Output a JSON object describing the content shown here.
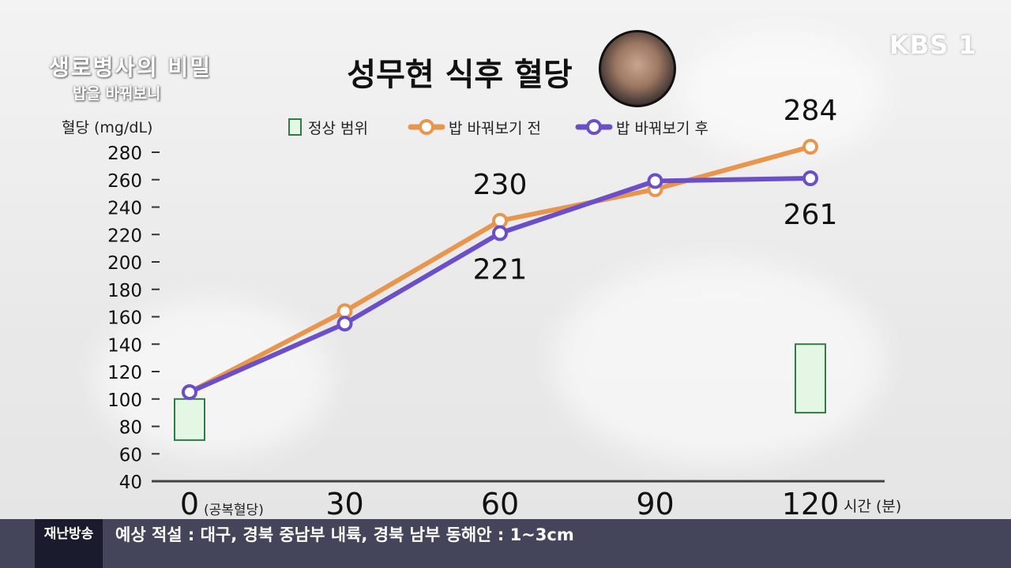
{
  "broadcast": {
    "show_title": "생로병사의 비밀",
    "episode_title": "밥을 바꿔보니",
    "channel_logo": "KBS 1"
  },
  "ticker": {
    "tag": "재난방송",
    "message": "예상 적설 : 대구, 경북 중남부 내륙, 경북 남부 동해안 : 1~3cm"
  },
  "chart_data": {
    "type": "line",
    "title": "성무현 식후 혈당",
    "ylabel": "혈당 (mg/dL)",
    "xlabel": "시간 (분)",
    "ylim": [
      40,
      280
    ],
    "yticks": [
      40,
      60,
      80,
      100,
      120,
      140,
      160,
      180,
      200,
      220,
      240,
      260,
      280
    ],
    "x": [
      0,
      30,
      60,
      90,
      120
    ],
    "x_tick_labels": [
      "0",
      "30",
      "60",
      "90",
      "120"
    ],
    "x_tick_note": "(공복혈당)",
    "legend_position": "top",
    "series": [
      {
        "name": "밥 바꿔보기 전",
        "values": [
          105,
          164,
          230,
          253,
          284
        ],
        "color": "#e8964e",
        "point_labels": [
          null,
          null,
          "230",
          null,
          "284"
        ]
      },
      {
        "name": "밥 바꿔보기 후",
        "values": [
          105,
          155,
          221,
          259,
          261
        ],
        "color": "#6b4fc8",
        "point_labels": [
          null,
          null,
          "221",
          null,
          "261"
        ]
      }
    ],
    "normal_range": {
      "name": "정상 범위",
      "color": "#e4f7e4",
      "border_color": "#2f7a45",
      "ranges": [
        {
          "x": 0,
          "low": 70,
          "high": 100
        },
        {
          "x": 120,
          "low": 90,
          "high": 140
        }
      ]
    }
  }
}
